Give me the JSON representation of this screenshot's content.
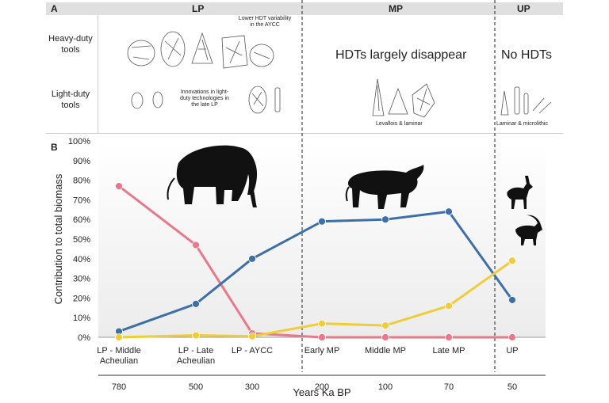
{
  "panelA": {
    "label": "A",
    "periods": [
      "LP",
      "MP",
      "UP"
    ],
    "row_heavy": "Heavy-duty tools",
    "row_light": "Light-duty tools",
    "note_lower_hdt": "Lower HDT variability in the AYCC",
    "note_innovations": "Innovations in light-duty technologies in the late LP",
    "mp_heavy": "HDTs largely disappear",
    "up_heavy": "No HDTs",
    "mp_light": "Levallois & laminar",
    "up_light": "Laminar & microlithic"
  },
  "chart_data": {
    "type": "line",
    "panel_label": "B",
    "ylabel": "Contribution to total biomass",
    "xlabel": "Years Ka BP",
    "categories": [
      "LP - Middle Acheulian",
      "LP - Late Acheulian",
      "LP - AYCC",
      "Early MP",
      "Middle MP",
      "Late MP",
      "UP"
    ],
    "years": [
      "780",
      "500",
      "300",
      "200",
      "100",
      "70",
      "50"
    ],
    "yticks": [
      "0%",
      "10%",
      "20%",
      "30%",
      "40%",
      "50%",
      "60%",
      "70%",
      "80%",
      "90%",
      "100%"
    ],
    "ylim": [
      0,
      100
    ],
    "series": [
      {
        "values": [
          77,
          47,
          2,
          0,
          0,
          0,
          0
        ],
        "color": "#e8788a"
      },
      {
        "values": [
          3,
          17,
          40,
          59,
          60,
          64,
          19
        ],
        "color": "#3d6fa8"
      },
      {
        "values": [
          0,
          1,
          0.5,
          7,
          6,
          16,
          39
        ],
        "color": "#f0cc3a"
      }
    ],
    "grid": false,
    "icons": [
      "elephant-silhouette",
      "aurochs-silhouette",
      "gazelle-silhouette",
      "goat-silhouette"
    ]
  }
}
